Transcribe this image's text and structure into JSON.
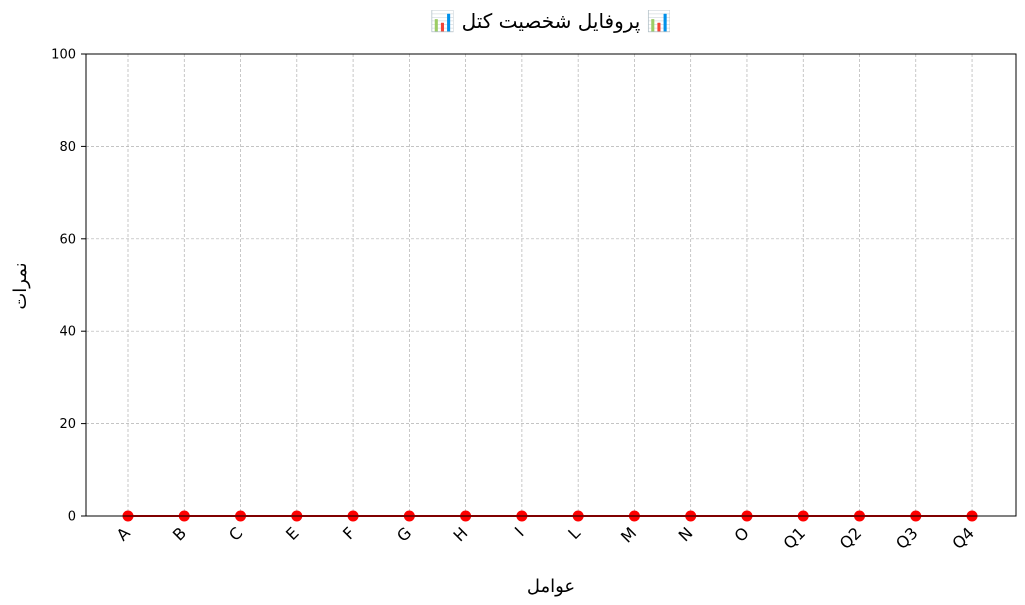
{
  "chart_data": {
    "type": "line",
    "title": "📊 پروفایل شخصیت کتل 📊",
    "xlabel": "عوامل",
    "ylabel": "نمرات",
    "categories": [
      "A",
      "B",
      "C",
      "E",
      "F",
      "G",
      "H",
      "I",
      "L",
      "M",
      "N",
      "O",
      "Q1",
      "Q2",
      "Q3",
      "Q4"
    ],
    "series": [
      {
        "values": [
          0,
          0,
          0,
          0,
          0,
          0,
          0,
          0,
          0,
          0,
          0,
          0,
          0,
          0,
          0,
          0
        ]
      }
    ],
    "ylim": [
      0,
      100
    ],
    "yticks": [
      0,
      20,
      40,
      60,
      80,
      100
    ],
    "grid": true,
    "colors": {
      "line": "#ff0000",
      "marker": "#ff0000"
    }
  }
}
